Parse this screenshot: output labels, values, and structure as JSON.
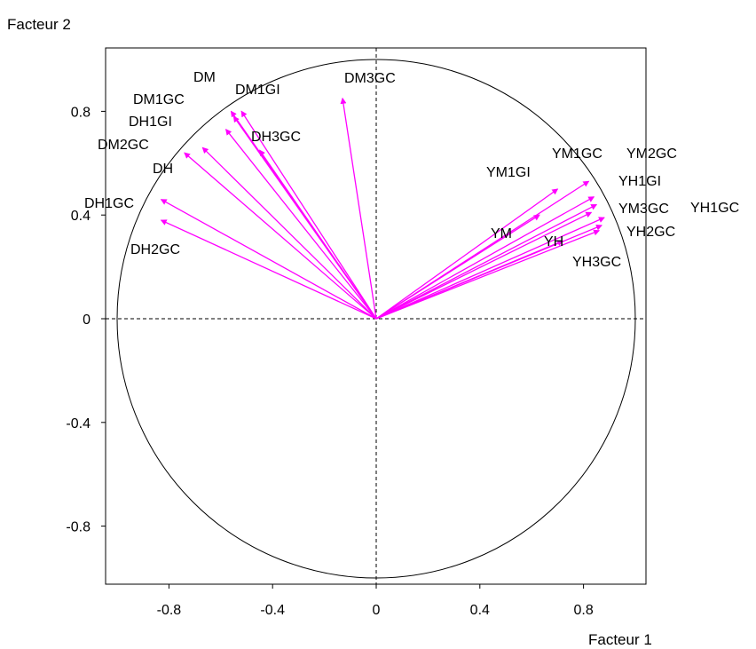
{
  "chart_data": {
    "type": "scatter",
    "subtype": "correlation-circle",
    "xlabel": "Facteur 1",
    "ylabel": "Facteur 2",
    "xlim": [
      -1.05,
      1.05
    ],
    "ylim": [
      -1.0,
      1.05
    ],
    "x_ticks": [
      -0.8,
      -0.4,
      0,
      0.4,
      0.8
    ],
    "x_tick_labels": [
      "-0.8",
      "-0.4",
      "0",
      "0.4",
      "0.8"
    ],
    "y_ticks": [
      -0.8,
      -0.4,
      0,
      0.4,
      0.8
    ],
    "y_tick_labels": [
      "-0.8",
      "-0.4",
      "0",
      "0.4",
      "0.8"
    ],
    "arrow_color": "#ff00ff",
    "vectors": [
      {
        "label": "DM3GC",
        "x": -0.13,
        "y": 0.85
      },
      {
        "label": "DM",
        "x": -0.56,
        "y": 0.8
      },
      {
        "label": "DM1GI",
        "x": -0.52,
        "y": 0.8
      },
      {
        "label": "DM1GC",
        "x": -0.55,
        "y": 0.78
      },
      {
        "label": "DH1GI",
        "x": -0.58,
        "y": 0.73
      },
      {
        "label": "DH3GC",
        "x": -0.45,
        "y": 0.65
      },
      {
        "label": "DM2GC",
        "x": -0.67,
        "y": 0.66
      },
      {
        "label": "DH",
        "x": -0.74,
        "y": 0.64
      },
      {
        "label": "DH1GC",
        "x": -0.83,
        "y": 0.46
      },
      {
        "label": "DH2GC",
        "x": -0.83,
        "y": 0.38
      },
      {
        "label": "YM1GI",
        "x": 0.7,
        "y": 0.5
      },
      {
        "label": "YM1GC",
        "x": 0.82,
        "y": 0.53
      },
      {
        "label": "YM2GC",
        "x": 0.84,
        "y": 0.47
      },
      {
        "label": "YH1GI",
        "x": 0.85,
        "y": 0.44
      },
      {
        "label": "YM3GC",
        "x": 0.83,
        "y": 0.41
      },
      {
        "label": "YH1GC",
        "x": 0.88,
        "y": 0.39
      },
      {
        "label": "YH2GC",
        "x": 0.87,
        "y": 0.36
      },
      {
        "label": "YH3GC",
        "x": 0.86,
        "y": 0.34
      },
      {
        "label": "YM",
        "x": 0.63,
        "y": 0.4
      },
      {
        "label": "YH",
        "x": 0.72,
        "y": 0.3
      }
    ]
  }
}
